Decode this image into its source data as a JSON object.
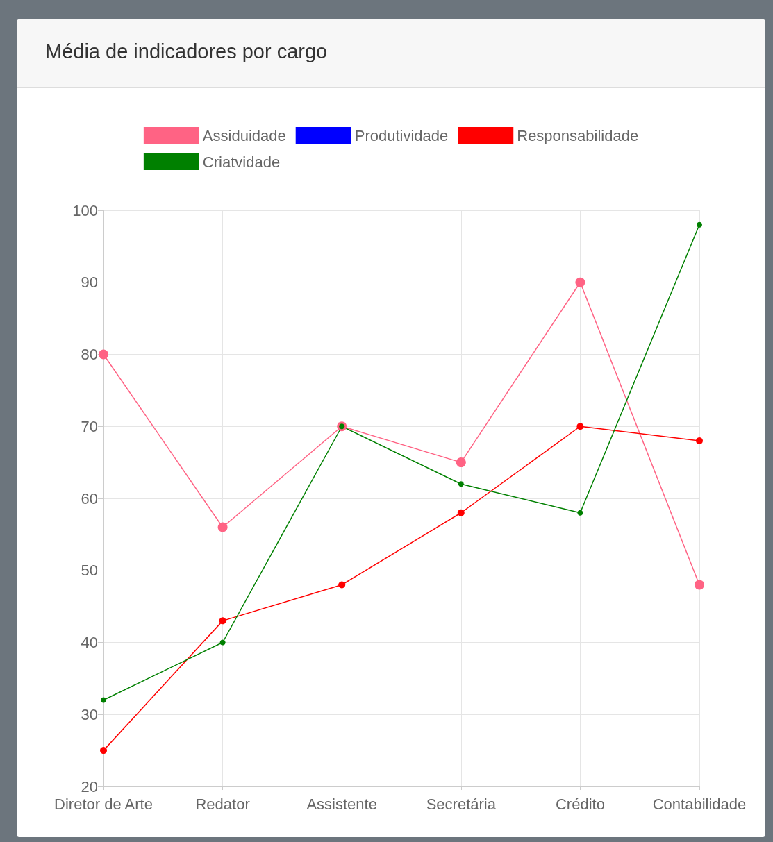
{
  "chart_data": {
    "type": "line",
    "title": "Média de indicadores por cargo",
    "categories": [
      "Diretor de Arte",
      "Redator",
      "Assistente",
      "Secretária",
      "Crédito",
      "Contabilidade"
    ],
    "series": [
      {
        "name": "Assiduidade",
        "color": "#ff6384",
        "values": [
          80,
          56,
          70,
          65,
          90,
          48
        ]
      },
      {
        "name": "Produtividade",
        "color": "#0000ff",
        "values": [
          null,
          null,
          null,
          null,
          null,
          null
        ]
      },
      {
        "name": "Responsabilidade",
        "color": "#ff0000",
        "values": [
          25,
          43,
          48,
          58,
          70,
          68
        ]
      },
      {
        "name": "Criatvidade",
        "color": "#008000",
        "values": [
          32,
          40,
          70,
          62,
          58,
          98
        ]
      }
    ],
    "ylim": [
      20,
      100
    ],
    "yticks": [
      20,
      30,
      40,
      50,
      60,
      70,
      80,
      90,
      100
    ],
    "grid": true,
    "legend": "top",
    "marker": "circle",
    "line_style": "solid"
  }
}
